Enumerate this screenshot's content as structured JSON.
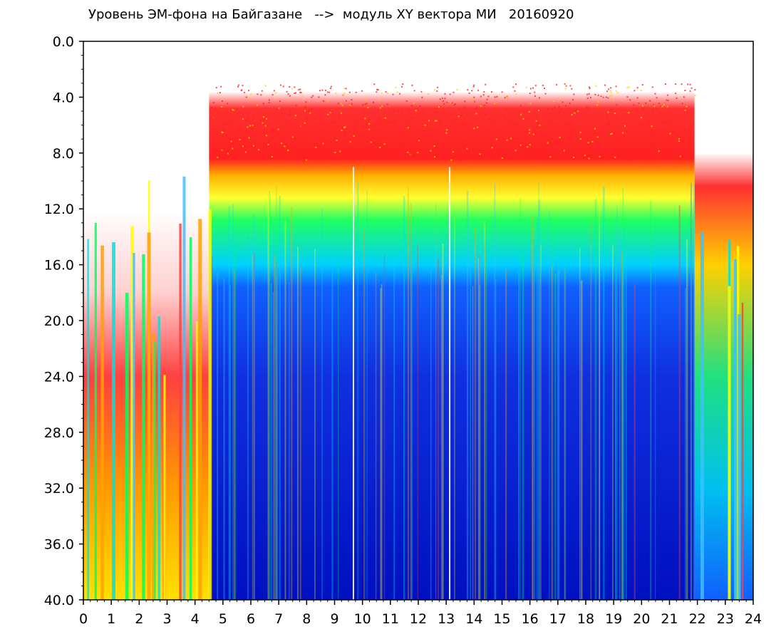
{
  "chart_data": {
    "type": "heatmap",
    "title": "Уровень ЭМ-фона на Байгазане   -->  модуль XY вектора МИ   20160920",
    "xlabel": "",
    "ylabel": "",
    "xlim": [
      0,
      24
    ],
    "ylim": [
      0,
      40
    ],
    "y_axis_inverted": true,
    "x_ticks": [
      "0",
      "1",
      "2",
      "3",
      "4",
      "5",
      "6",
      "7",
      "8",
      "9",
      "10",
      "11",
      "12",
      "13",
      "14",
      "15",
      "16",
      "17",
      "18",
      "19",
      "20",
      "21",
      "22",
      "23",
      "24"
    ],
    "x_tick_values": [
      0,
      1,
      2,
      3,
      4,
      5,
      6,
      7,
      8,
      9,
      10,
      11,
      12,
      13,
      14,
      15,
      16,
      17,
      18,
      19,
      20,
      21,
      22,
      23,
      24
    ],
    "y_ticks": [
      "0.0",
      "4.0",
      "8.0",
      "12.0",
      "16.0",
      "20.0",
      "24.0",
      "28.0",
      "32.0",
      "36.0",
      "40.0"
    ],
    "y_tick_values": [
      0,
      4,
      8,
      12,
      16,
      20,
      24,
      28,
      32,
      36,
      40
    ],
    "colorscale": [
      "#ffffff",
      "#ff2020",
      "#ff8000",
      "#ffff00",
      "#00ff40",
      "#00e0e0",
      "#0090ff",
      "#1040ff",
      "#0010c0"
    ],
    "grid": false,
    "legend": "none"
  }
}
